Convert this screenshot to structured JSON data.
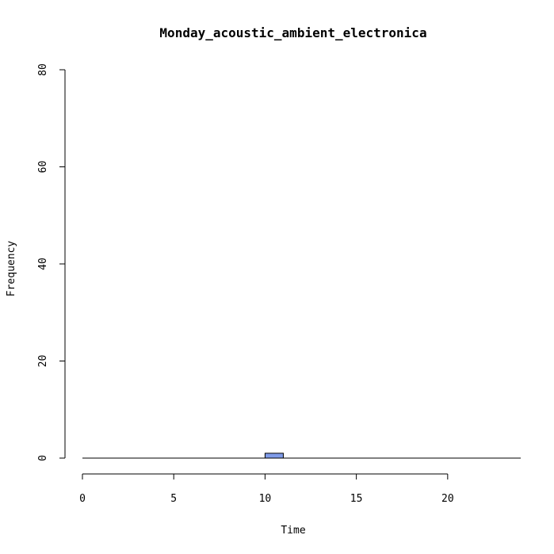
{
  "chart_data": {
    "type": "bar",
    "title": "Monday_acoustic_ambient_electronica",
    "xlabel": "Time",
    "ylabel": "Frequency",
    "xlim": [
      0,
      24
    ],
    "ylim": [
      0,
      80
    ],
    "x_ticks": [
      "0",
      "5",
      "10",
      "15",
      "20"
    ],
    "y_ticks": [
      "0",
      "20",
      "40",
      "60",
      "80"
    ],
    "bins": [
      {
        "start": 10,
        "end": 11,
        "count": 1
      }
    ],
    "bar_color": "#7f9be8",
    "grid": false,
    "legend": "none"
  }
}
